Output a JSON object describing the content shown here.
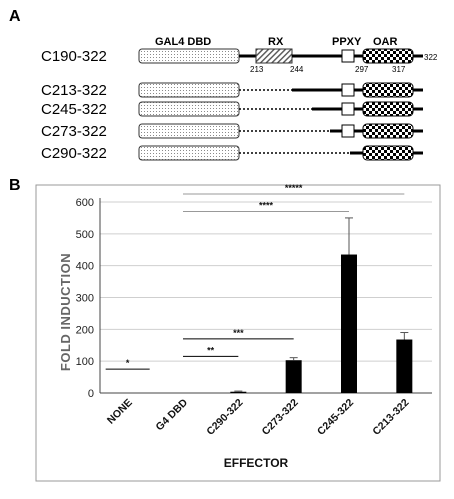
{
  "panel_a": {
    "letter": "A",
    "domain_labels": {
      "gal4": "GAL4 DBD",
      "rx": "RX",
      "ppxy": "PPXY",
      "oar": "OAR"
    },
    "positions": {
      "p213": "213",
      "p244": "244",
      "p297": "297",
      "p317": "317",
      "p322": "322"
    },
    "constructs": [
      {
        "name": "C190-322",
        "rx": true,
        "rx_link": "solid",
        "ppxy": true,
        "ppxy_link": "solid"
      },
      {
        "name": "C213-322",
        "rx": false,
        "rx_link": "dotted",
        "ppxy": true,
        "ppxy_link": "solid"
      },
      {
        "name": "C245-322",
        "rx": false,
        "rx_link": "dotted",
        "ppxy": true,
        "ppxy_link": "solid"
      },
      {
        "name": "C273-322",
        "rx": false,
        "rx_link": "dotted",
        "ppxy": true,
        "ppxy_link": "partial"
      },
      {
        "name": "C290-322",
        "rx": false,
        "rx_link": "dotted",
        "ppxy": false,
        "ppxy_link": "dotted"
      }
    ]
  },
  "panel_b": {
    "letter": "B"
  },
  "chart_data": {
    "type": "bar",
    "xlabel": "EFFECTOR",
    "ylabel": "FOLD INDUCTION",
    "ylim": [
      0,
      600
    ],
    "yticks": [
      0,
      100,
      200,
      300,
      400,
      500,
      600
    ],
    "categories": [
      "NONE",
      "G4 DBD",
      "C290-322",
      "C273-322",
      "C245-322",
      "C213-322"
    ],
    "values": [
      0,
      0,
      4,
      103,
      435,
      168
    ],
    "errors": [
      0,
      0,
      2,
      8,
      115,
      22
    ],
    "grid": true,
    "bar_color": "#000000",
    "significance": [
      {
        "label": "*",
        "from": 0,
        "to": 0,
        "y": 75
      },
      {
        "label": "**",
        "from": 1,
        "to": 2,
        "y": 115
      },
      {
        "label": "***",
        "from": 1,
        "to": 3,
        "y": 170
      },
      {
        "label": "****",
        "from": 1,
        "to": 4,
        "y": 570
      },
      {
        "label": "*****",
        "from": 1,
        "to": 5,
        "y": 625
      }
    ]
  }
}
